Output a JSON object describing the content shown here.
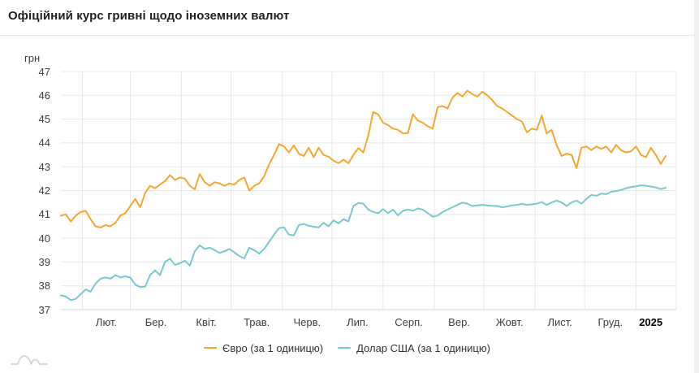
{
  "header": {
    "title": "Офіційний курс гривні щодо іноземних валют"
  },
  "colors": {
    "euro_line": "#f6a52f",
    "dollar_line": "#79c8d0",
    "grid": "#e8e8e8",
    "axis_line": "#d6d6d6",
    "axis_text": "#3c3c3c",
    "title_text": "#212121",
    "logo_gray": "#d4d4d4"
  },
  "chart_data": {
    "type": "line",
    "title": "Офіційний курс гривні щодо іноземних валют",
    "xlabel": "",
    "ylabel": "грн",
    "ylim": [
      37,
      47
    ],
    "yticks": [
      47,
      46,
      45,
      44,
      43,
      42,
      41,
      40,
      39,
      38,
      37
    ],
    "grid": true,
    "legend_position": "bottom",
    "x_range": {
      "start": "2024-01-19",
      "end": "2025-01-19",
      "step_days": 3,
      "points": 123
    },
    "xtick_labels": [
      "Лют.",
      "Бер.",
      "Квіт.",
      "Трав.",
      "Черв.",
      "Лип.",
      "Серп.",
      "Вер.",
      "Жовт.",
      "Лист.",
      "Груд.",
      "2025"
    ],
    "month_start_day_offsets": [
      13,
      42,
      73,
      103,
      134,
      164,
      195,
      226,
      256,
      287,
      317,
      348
    ],
    "total_days": 366,
    "series": [
      {
        "name": "Євро (за 1 одиницю)",
        "color": "#f6a52f",
        "values": [
          40.95,
          41.0,
          40.7,
          40.95,
          41.1,
          41.15,
          40.8,
          40.5,
          40.45,
          40.55,
          40.5,
          40.65,
          40.95,
          41.05,
          41.35,
          41.65,
          41.3,
          41.9,
          42.2,
          42.1,
          42.25,
          42.4,
          42.65,
          42.45,
          42.55,
          42.5,
          42.2,
          42.05,
          42.7,
          42.35,
          42.2,
          42.35,
          42.3,
          42.2,
          42.3,
          42.25,
          42.45,
          42.55,
          42.0,
          42.2,
          42.3,
          42.6,
          43.1,
          43.5,
          43.95,
          43.85,
          43.6,
          43.9,
          43.55,
          43.45,
          43.8,
          43.4,
          43.8,
          43.5,
          43.42,
          43.25,
          43.15,
          43.3,
          43.15,
          43.5,
          43.78,
          43.6,
          44.3,
          45.3,
          45.2,
          44.85,
          44.75,
          44.6,
          44.55,
          44.4,
          44.42,
          45.2,
          44.95,
          44.85,
          44.7,
          44.6,
          45.5,
          45.55,
          45.45,
          45.9,
          46.1,
          45.95,
          46.2,
          46.05,
          45.95,
          46.15,
          46.0,
          45.8,
          45.55,
          45.45,
          45.3,
          45.15,
          45.0,
          44.9,
          44.45,
          44.6,
          44.55,
          45.15,
          44.4,
          44.55,
          43.9,
          43.45,
          43.55,
          43.5,
          42.95,
          43.8,
          43.85,
          43.7,
          43.85,
          43.75,
          43.85,
          43.6,
          43.92,
          43.7,
          43.6,
          43.65,
          43.85,
          43.5,
          43.4,
          43.8,
          43.5,
          43.12,
          43.45
        ]
      },
      {
        "name": "Долар США (за 1 одиницю)",
        "color": "#79c8d0",
        "values": [
          37.6,
          37.55,
          37.4,
          37.45,
          37.65,
          37.85,
          37.75,
          38.1,
          38.3,
          38.35,
          38.3,
          38.45,
          38.35,
          38.4,
          38.34,
          38.05,
          37.95,
          37.97,
          38.45,
          38.65,
          38.45,
          39.0,
          39.14,
          38.88,
          38.95,
          39.05,
          38.85,
          39.45,
          39.7,
          39.55,
          39.6,
          39.5,
          39.38,
          39.45,
          39.55,
          39.4,
          39.25,
          39.15,
          39.6,
          39.5,
          39.35,
          39.55,
          39.85,
          40.15,
          40.42,
          40.45,
          40.15,
          40.12,
          40.55,
          40.6,
          40.52,
          40.48,
          40.45,
          40.65,
          40.5,
          40.75,
          40.62,
          40.8,
          40.7,
          41.35,
          41.48,
          41.45,
          41.2,
          41.1,
          41.05,
          41.22,
          41.05,
          41.2,
          40.96,
          41.15,
          41.2,
          41.15,
          41.25,
          41.2,
          41.05,
          40.9,
          40.95,
          41.1,
          41.2,
          41.3,
          41.4,
          41.5,
          41.45,
          41.35,
          41.38,
          41.4,
          41.38,
          41.36,
          41.35,
          41.3,
          41.33,
          41.38,
          41.4,
          41.44,
          41.4,
          41.42,
          41.45,
          41.52,
          41.4,
          41.5,
          41.58,
          41.5,
          41.35,
          41.5,
          41.58,
          41.45,
          41.65,
          41.82,
          41.78,
          41.87,
          41.85,
          41.95,
          41.98,
          42.02,
          42.1,
          42.15,
          42.18,
          42.22,
          42.2,
          42.17,
          42.13,
          42.06,
          42.12
        ]
      }
    ]
  },
  "legend": {
    "items": [
      "Євро (за 1 одиницю)",
      "Долар США (за 1 одиницю)"
    ]
  }
}
